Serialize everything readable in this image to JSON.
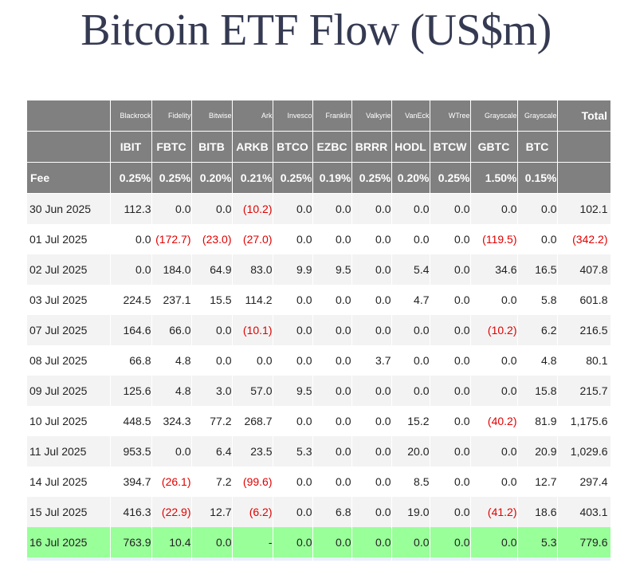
{
  "title": "Bitcoin ETF Flow (US$m)",
  "header": {
    "providers": [
      "Blackrock",
      "Fidelity",
      "Bitwise",
      "Ark",
      "Invesco",
      "Franklin",
      "Valkyrie",
      "VanEck",
      "WTree",
      "Grayscale",
      "Grayscale"
    ],
    "total_label": "Total",
    "tickers": [
      "IBIT",
      "FBTC",
      "BITB",
      "ARKB",
      "BTCO",
      "EZBC",
      "BRRR",
      "HODL",
      "BTCW",
      "GBTC",
      "BTC"
    ],
    "fee_label": "Fee",
    "fees": [
      "0.25%",
      "0.25%",
      "0.20%",
      "0.21%",
      "0.25%",
      "0.19%",
      "0.25%",
      "0.20%",
      "0.25%",
      "1.50%",
      "0.15%"
    ]
  },
  "rows": [
    {
      "date": "30 Jun 2025",
      "values": [
        "112.3",
        "0.0",
        "0.0",
        "(10.2)",
        "0.0",
        "0.0",
        "0.0",
        "0.0",
        "0.0",
        "0.0",
        "0.0"
      ],
      "total": "102.1"
    },
    {
      "date": "01 Jul 2025",
      "values": [
        "0.0",
        "(172.7)",
        "(23.0)",
        "(27.0)",
        "0.0",
        "0.0",
        "0.0",
        "0.0",
        "0.0",
        "(119.5)",
        "0.0"
      ],
      "total": "(342.2)"
    },
    {
      "date": "02 Jul 2025",
      "values": [
        "0.0",
        "184.0",
        "64.9",
        "83.0",
        "9.9",
        "9.5",
        "0.0",
        "5.4",
        "0.0",
        "34.6",
        "16.5"
      ],
      "total": "407.8"
    },
    {
      "date": "03 Jul 2025",
      "values": [
        "224.5",
        "237.1",
        "15.5",
        "114.2",
        "0.0",
        "0.0",
        "0.0",
        "4.7",
        "0.0",
        "0.0",
        "5.8"
      ],
      "total": "601.8"
    },
    {
      "date": "07 Jul 2025",
      "values": [
        "164.6",
        "66.0",
        "0.0",
        "(10.1)",
        "0.0",
        "0.0",
        "0.0",
        "0.0",
        "0.0",
        "(10.2)",
        "6.2"
      ],
      "total": "216.5"
    },
    {
      "date": "08 Jul 2025",
      "values": [
        "66.8",
        "4.8",
        "0.0",
        "0.0",
        "0.0",
        "0.0",
        "3.7",
        "0.0",
        "0.0",
        "0.0",
        "4.8"
      ],
      "total": "80.1"
    },
    {
      "date": "09 Jul 2025",
      "values": [
        "125.6",
        "4.8",
        "3.0",
        "57.0",
        "9.5",
        "0.0",
        "0.0",
        "0.0",
        "0.0",
        "0.0",
        "15.8"
      ],
      "total": "215.7"
    },
    {
      "date": "10 Jul 2025",
      "values": [
        "448.5",
        "324.3",
        "77.2",
        "268.7",
        "0.0",
        "0.0",
        "0.0",
        "15.2",
        "0.0",
        "(40.2)",
        "81.9"
      ],
      "total": "1,175.6"
    },
    {
      "date": "11 Jul 2025",
      "values": [
        "953.5",
        "0.0",
        "6.4",
        "23.5",
        "5.3",
        "0.0",
        "0.0",
        "20.0",
        "0.0",
        "0.0",
        "20.9"
      ],
      "total": "1,029.6"
    },
    {
      "date": "14 Jul 2025",
      "values": [
        "394.7",
        "(26.1)",
        "7.2",
        "(99.6)",
        "0.0",
        "0.0",
        "0.0",
        "8.5",
        "0.0",
        "0.0",
        "12.7"
      ],
      "total": "297.4"
    },
    {
      "date": "15 Jul 2025",
      "values": [
        "416.3",
        "(22.9)",
        "12.7",
        "(6.2)",
        "0.0",
        "6.8",
        "0.0",
        "19.0",
        "0.0",
        "(41.2)",
        "18.6"
      ],
      "total": "403.1"
    },
    {
      "date": "16 Jul 2025",
      "values": [
        "763.9",
        "10.4",
        "0.0",
        "-",
        "0.0",
        "0.0",
        "0.0",
        "0.0",
        "0.0",
        "0.0",
        "5.3"
      ],
      "total": "779.6",
      "highlight": true
    }
  ],
  "colors": {
    "header_bg": "#808080",
    "header_text": "#ffffff",
    "negative": "#e00000",
    "highlight_row": "#99ff99",
    "title": "#353a52"
  }
}
